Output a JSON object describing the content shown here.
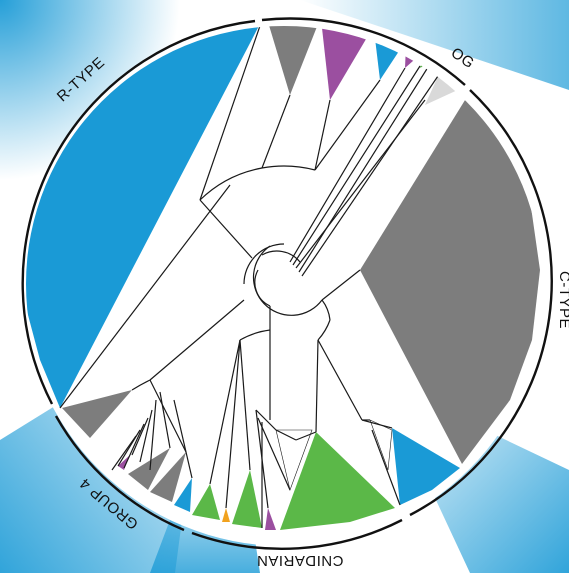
{
  "labels": {
    "r_type": "R-TYPE",
    "og": "OG",
    "c_type": "C-TYPE",
    "cnidarian": "CNIDARIAN",
    "group4": "GROUP 4"
  },
  "colors": {
    "blue": "#1a9ad6",
    "grey": "#7d7d7d",
    "light_grey": "#d9d9d9",
    "purple": "#9b4fa0",
    "green": "#5bb848",
    "orange": "#f1a21f",
    "background": "#ffffff",
    "branch": "#1a1a1a"
  }
}
